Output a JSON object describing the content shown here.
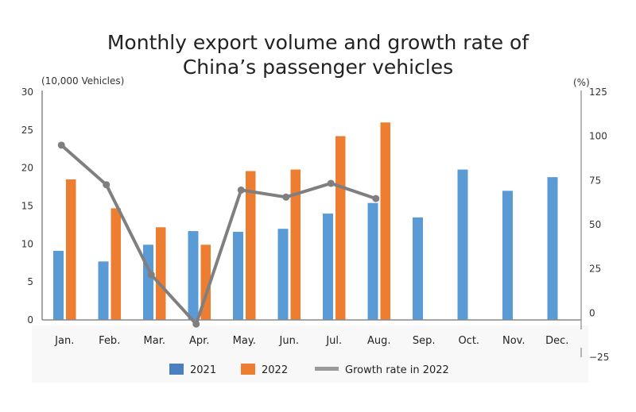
{
  "chart_data": {
    "type": "bar+line",
    "title": "Monthly export volume and growth rate of China’s passenger vehicles",
    "title_lines": [
      "Monthly export volume and growth rate of",
      "China’s passenger vehicles"
    ],
    "ylabel_left": "(10,000 Vehicles)",
    "ylabel_right": "(%)",
    "ylim_left": [
      0,
      30
    ],
    "ylim_right": [
      -25,
      125
    ],
    "yticks_left": [
      "0",
      "5",
      "10",
      "15",
      "20",
      "25",
      "30"
    ],
    "yticks_right": [
      "−25",
      "0",
      "25",
      "50",
      "75",
      "100",
      "125"
    ],
    "categories": [
      "Jan.",
      "Feb.",
      "Mar.",
      "Apr.",
      "May.",
      "Jun.",
      "Jul.",
      "Aug.",
      "Sep.",
      "Oct.",
      "Nov.",
      "Dec."
    ],
    "series": [
      {
        "name": "2021",
        "type": "bar",
        "axis": "left",
        "color": "#5b9bd5",
        "values": [
          9.1,
          7.7,
          9.9,
          11.7,
          11.6,
          12.0,
          14.0,
          15.4,
          13.5,
          19.8,
          17.0,
          18.8
        ]
      },
      {
        "name": "2022",
        "type": "bar",
        "axis": "left",
        "color": "#ed7d31",
        "values": [
          18.5,
          14.7,
          12.2,
          9.9,
          19.6,
          19.8,
          24.2,
          26.0,
          null,
          null,
          null,
          null
        ]
      },
      {
        "name": "Growth rate in 2022",
        "type": "line",
        "axis": "right",
        "color": "#7f7f7f",
        "values": [
          95,
          72.6,
          21.7,
          -6.2,
          69.6,
          65.6,
          73.4,
          64.8,
          null,
          null,
          null,
          null
        ]
      }
    ],
    "grid": false,
    "legend": "bottom",
    "negative_tick_color": "#e02020"
  }
}
